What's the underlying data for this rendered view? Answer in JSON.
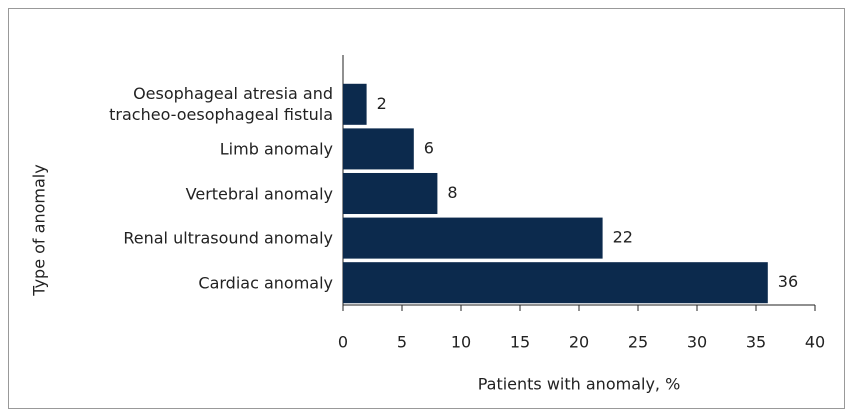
{
  "chart_data": {
    "type": "bar",
    "orientation": "horizontal",
    "categories": [
      "Oesophageal atresia and tracheo-oesophageal fistula",
      "Limb anomaly",
      "Vertebral anomaly",
      "Renal ultrasound anomaly",
      "Cardiac anomaly"
    ],
    "values": [
      2,
      6,
      8,
      22,
      36
    ],
    "color": "#0c2a4d",
    "xlabel": "Patients with anomaly, %",
    "ylabel": "Type of anomaly",
    "xlim": [
      0,
      40
    ],
    "xticks": [
      0,
      5,
      10,
      15,
      20,
      25,
      30,
      35,
      40
    ]
  }
}
